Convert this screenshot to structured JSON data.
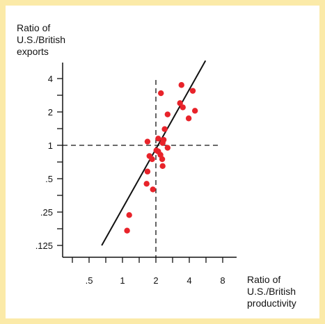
{
  "chart_data": {
    "type": "scatter",
    "title": "",
    "ylabel_lines": [
      "Ratio of",
      "U.S./British",
      "exports"
    ],
    "xlabel_lines": [
      "Ratio of",
      "U.S./British",
      "productivity"
    ],
    "x_scale": "log",
    "y_scale": "log",
    "x_ticks": [
      {
        "value": 0.5,
        "label": ".5"
      },
      {
        "value": 1,
        "label": "1"
      },
      {
        "value": 2,
        "label": "2"
      },
      {
        "value": 4,
        "label": "4"
      },
      {
        "value": 8,
        "label": "8"
      }
    ],
    "y_ticks": [
      {
        "value": 0.125,
        "label": ".125"
      },
      {
        "value": 0.25,
        "label": ".25"
      },
      {
        "value": 0.5,
        "label": ".5"
      },
      {
        "value": 1,
        "label": "1"
      },
      {
        "value": 2,
        "label": "2"
      },
      {
        "value": 4,
        "label": "4"
      }
    ],
    "xlim": [
      0.3,
      22
    ],
    "ylim": [
      0.1,
      7
    ],
    "reference_lines": {
      "x": 2,
      "y": 1
    },
    "trend_line": [
      {
        "x": 0.65,
        "y": 0.125
      },
      {
        "x": 5.6,
        "y": 5.8
      }
    ],
    "point_color": "#e8232a",
    "points": [
      {
        "x": 1.1,
        "y": 0.17
      },
      {
        "x": 1.15,
        "y": 0.235
      },
      {
        "x": 1.65,
        "y": 0.45
      },
      {
        "x": 1.68,
        "y": 0.58
      },
      {
        "x": 1.88,
        "y": 0.4
      },
      {
        "x": 1.75,
        "y": 0.8
      },
      {
        "x": 1.85,
        "y": 0.75
      },
      {
        "x": 1.68,
        "y": 1.08
      },
      {
        "x": 2.02,
        "y": 0.9
      },
      {
        "x": 2.1,
        "y": 0.88
      },
      {
        "x": 2.1,
        "y": 1.15
      },
      {
        "x": 2.2,
        "y": 0.82
      },
      {
        "x": 2.28,
        "y": 0.75
      },
      {
        "x": 2.3,
        "y": 0.65
      },
      {
        "x": 2.3,
        "y": 1.05
      },
      {
        "x": 2.35,
        "y": 1.12
      },
      {
        "x": 2.55,
        "y": 0.95
      },
      {
        "x": 2.4,
        "y": 1.4
      },
      {
        "x": 2.55,
        "y": 1.9
      },
      {
        "x": 2.22,
        "y": 2.95
      },
      {
        "x": 3.3,
        "y": 2.4
      },
      {
        "x": 3.5,
        "y": 2.2
      },
      {
        "x": 3.4,
        "y": 3.5
      },
      {
        "x": 3.95,
        "y": 1.75
      },
      {
        "x": 4.3,
        "y": 3.1
      },
      {
        "x": 4.5,
        "y": 2.05
      }
    ]
  }
}
